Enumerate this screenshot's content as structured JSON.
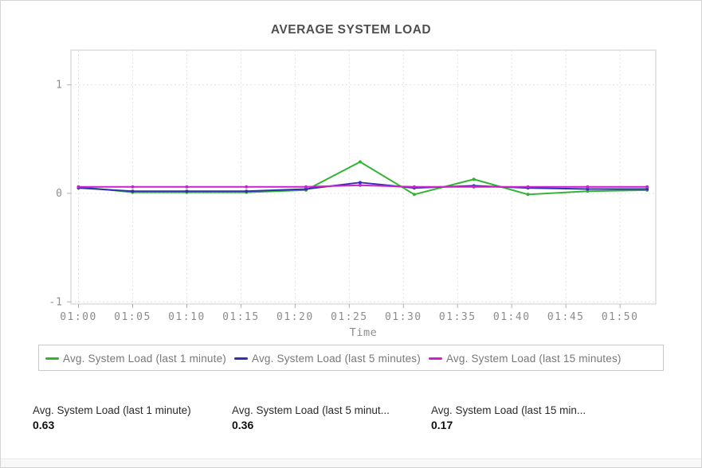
{
  "panel": {
    "title": "AVERAGE SYSTEM LOAD"
  },
  "chart_data": {
    "type": "line",
    "title": "AVERAGE SYSTEM LOAD",
    "xlabel": "Time",
    "ylabel": "",
    "grid": true,
    "legend_position": "bottom",
    "x_tick_minutes": [
      60,
      65,
      70,
      75,
      80,
      85,
      90,
      95,
      100,
      105,
      110
    ],
    "x_tick_labels": [
      "01:00",
      "01:05",
      "01:10",
      "01:15",
      "01:20",
      "01:25",
      "01:30",
      "01:35",
      "01:40",
      "01:45",
      "01:50"
    ],
    "y_ticks": [
      -1,
      0,
      1
    ],
    "xlim_minutes": [
      59.3,
      113.3
    ],
    "ylim": [
      -1.02,
      1.32
    ],
    "series": [
      {
        "name": "Avg. System Load (last 1 minute)",
        "color": "#33b333",
        "x_minutes": [
          60,
          65,
          70,
          75.5,
          81,
          86,
          91,
          96.5,
          101.5,
          107,
          112.5
        ],
        "values": [
          0.06,
          0.01,
          0.01,
          0.01,
          0.03,
          0.29,
          -0.01,
          0.13,
          -0.01,
          0.02,
          0.03
        ]
      },
      {
        "name": "Avg. System Load (last 5 minutes)",
        "color": "#3030b3",
        "x_minutes": [
          60,
          65,
          70,
          75.5,
          81,
          86,
          91,
          96.5,
          101.5,
          107,
          112.5
        ],
        "values": [
          0.05,
          0.02,
          0.02,
          0.02,
          0.04,
          0.1,
          0.05,
          0.07,
          0.05,
          0.04,
          0.04
        ]
      },
      {
        "name": "Avg. System Load (last 15 minutes)",
        "color": "#cc22cc",
        "x_minutes": [
          60,
          65,
          70,
          75.5,
          81,
          86,
          91,
          96.5,
          101.5,
          107,
          112.5
        ],
        "values": [
          0.06,
          0.06,
          0.06,
          0.06,
          0.06,
          0.075,
          0.06,
          0.06,
          0.06,
          0.06,
          0.06
        ]
      }
    ],
    "style": {
      "grid_color": "#e1e1e1",
      "border_color": "#cccccc",
      "tick_color": "#b0b0b0",
      "axis_text_color": "#8c8c8c"
    }
  },
  "stats": [
    {
      "label": "Avg. System Load (last 1 minute)",
      "value": "0.63"
    },
    {
      "label": "Avg. System Load (last 5 minut...",
      "value": "0.36"
    },
    {
      "label": "Avg. System Load (last 15 min...",
      "value": "0.17"
    }
  ]
}
